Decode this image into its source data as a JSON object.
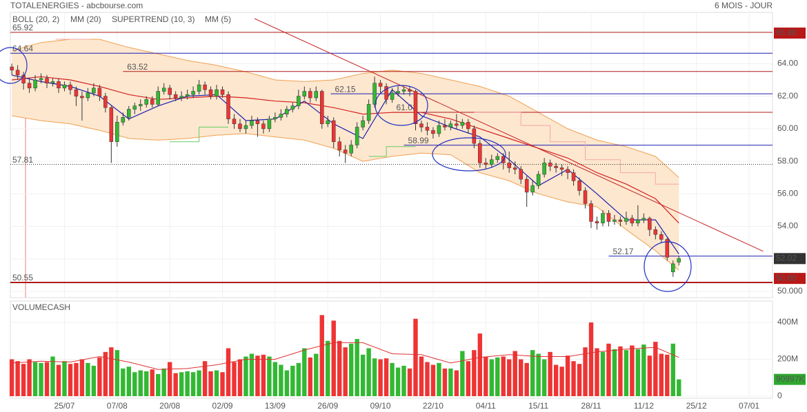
{
  "header": {
    "title": "TOTALENERGIES - abcbourse.com",
    "period": "6 MOIS - JOUR"
  },
  "chart_data": [
    {
      "type": "candlestick",
      "xlim": [
        -0.25,
        130
      ],
      "xticks": [
        {
          "value": 9,
          "label": "25/07"
        },
        {
          "value": 18,
          "label": "07/08"
        },
        {
          "value": 27,
          "label": "20/08"
        },
        {
          "value": 36,
          "label": "02/09"
        },
        {
          "value": 45,
          "label": "13/09"
        },
        {
          "value": 54,
          "label": "26/09"
        },
        {
          "value": 63,
          "label": "09/10"
        },
        {
          "value": 72,
          "label": "22/10"
        },
        {
          "value": 81,
          "label": "04/11"
        },
        {
          "value": 90,
          "label": "15/11"
        },
        {
          "value": 99,
          "label": "28/11"
        },
        {
          "value": 108,
          "label": "11/12"
        },
        {
          "value": 117,
          "label": "25/12"
        },
        {
          "value": 126,
          "label": "07/01"
        }
      ],
      "ylim": [
        49.62,
        67.15
      ],
      "yticks": [
        {
          "value": 50,
          "label": "50.000"
        },
        {
          "value": 52,
          "label": "52.00"
        },
        {
          "value": 54,
          "label": "54.00"
        },
        {
          "value": 56,
          "label": "56.00"
        },
        {
          "value": 58,
          "label": "58.00"
        },
        {
          "value": 60,
          "label": "60.00"
        },
        {
          "value": 62,
          "label": "62.00"
        },
        {
          "value": 64,
          "label": "64.00"
        },
        {
          "value": 66,
          "label": "66.00"
        }
      ],
      "grid": true,
      "up_color": "#33b833",
      "down_color": "#ee3434",
      "candles": [
        [
          63.8,
          64.0,
          63.3,
          63.6
        ],
        [
          63.6,
          63.9,
          63.0,
          63.3
        ],
        [
          63.3,
          63.5,
          62.4,
          62.8
        ],
        [
          62.8,
          63.1,
          62.2,
          62.5
        ],
        [
          62.5,
          63.3,
          62.3,
          63.0
        ],
        [
          63.0,
          63.4,
          62.8,
          63.1
        ],
        [
          63.1,
          63.3,
          62.5,
          62.8
        ],
        [
          62.8,
          63.1,
          62.6,
          62.9
        ],
        [
          62.9,
          63.1,
          62.2,
          62.5
        ],
        [
          62.5,
          62.9,
          62.3,
          62.7
        ],
        [
          62.7,
          62.9,
          62.1,
          62.4
        ],
        [
          62.4,
          62.6,
          61.4,
          62.0
        ],
        [
          62.0,
          62.3,
          60.5,
          61.9
        ],
        [
          61.9,
          62.5,
          61.7,
          62.2
        ],
        [
          62.2,
          62.8,
          62.0,
          62.5
        ],
        [
          62.5,
          62.7,
          61.7,
          62.0
        ],
        [
          62.0,
          62.2,
          61.0,
          61.3
        ],
        [
          61.3,
          61.4,
          57.9,
          59.2
        ],
        [
          59.2,
          60.8,
          58.9,
          60.4
        ],
        [
          60.4,
          61.0,
          60.2,
          60.7
        ],
        [
          60.7,
          61.4,
          60.5,
          61.2
        ],
        [
          61.2,
          61.6,
          60.9,
          61.4
        ],
        [
          61.4,
          61.8,
          61.1,
          61.5
        ],
        [
          61.5,
          62.0,
          61.3,
          61.8
        ],
        [
          61.8,
          62.0,
          61.3,
          61.5
        ],
        [
          61.5,
          62.6,
          61.4,
          62.3
        ],
        [
          62.3,
          62.8,
          62.1,
          62.5
        ],
        [
          62.5,
          62.7,
          61.8,
          62.1
        ],
        [
          62.1,
          62.3,
          61.7,
          61.9
        ],
        [
          61.9,
          62.3,
          61.7,
          62.0
        ],
        [
          62.0,
          62.4,
          61.8,
          62.1
        ],
        [
          62.1,
          62.6,
          61.9,
          62.3
        ],
        [
          62.3,
          63.0,
          62.1,
          62.7
        ],
        [
          62.7,
          62.9,
          62.1,
          62.4
        ],
        [
          62.4,
          62.6,
          61.8,
          62.0
        ],
        [
          62.0,
          62.7,
          61.8,
          62.4
        ],
        [
          62.4,
          62.6,
          61.9,
          62.1
        ],
        [
          62.1,
          62.3,
          60.3,
          60.6
        ],
        [
          60.6,
          60.9,
          60.0,
          60.3
        ],
        [
          60.3,
          60.6,
          59.8,
          60.0
        ],
        [
          60.0,
          60.5,
          59.7,
          60.2
        ],
        [
          60.2,
          60.8,
          60.0,
          60.5
        ],
        [
          60.5,
          60.7,
          59.5,
          60.3
        ],
        [
          60.3,
          60.5,
          59.7,
          60.0
        ],
        [
          60.0,
          60.8,
          59.8,
          60.6
        ],
        [
          60.6,
          61.0,
          60.4,
          60.7
        ],
        [
          60.7,
          61.2,
          60.5,
          60.9
        ],
        [
          60.9,
          61.4,
          60.7,
          61.2
        ],
        [
          61.2,
          61.6,
          61.0,
          61.4
        ],
        [
          61.4,
          62.4,
          61.2,
          62.0
        ],
        [
          62.0,
          62.6,
          61.8,
          62.3
        ],
        [
          62.3,
          62.5,
          61.6,
          61.9
        ],
        [
          61.9,
          62.6,
          61.7,
          62.3
        ],
        [
          62.3,
          62.4,
          60.0,
          60.3
        ],
        [
          60.3,
          60.8,
          60.1,
          60.5
        ],
        [
          60.5,
          60.7,
          58.8,
          59.2
        ],
        [
          59.2,
          59.5,
          58.3,
          58.7
        ],
        [
          58.7,
          59.0,
          57.9,
          58.5
        ],
        [
          58.5,
          59.3,
          58.3,
          59.0
        ],
        [
          59.0,
          60.4,
          58.8,
          60.1
        ],
        [
          60.1,
          60.8,
          59.9,
          60.5
        ],
        [
          60.5,
          61.8,
          60.3,
          61.5
        ],
        [
          61.5,
          63.2,
          61.3,
          62.8
        ],
        [
          62.8,
          63.0,
          62.2,
          62.6
        ],
        [
          62.6,
          62.8,
          61.5,
          61.8
        ],
        [
          61.8,
          62.5,
          61.6,
          62.2
        ],
        [
          62.2,
          62.6,
          62.0,
          62.3
        ],
        [
          62.3,
          62.6,
          62.1,
          62.4
        ],
        [
          62.4,
          62.6,
          62.0,
          62.3
        ],
        [
          62.3,
          62.4,
          59.9,
          60.3
        ],
        [
          60.3,
          60.5,
          59.8,
          60.1
        ],
        [
          60.1,
          60.4,
          59.6,
          59.9
        ],
        [
          59.9,
          60.1,
          59.4,
          59.7
        ],
        [
          59.7,
          60.5,
          59.5,
          60.2
        ],
        [
          60.2,
          60.6,
          59.9,
          60.1
        ],
        [
          60.1,
          60.5,
          59.9,
          60.3
        ],
        [
          60.3,
          60.9,
          60.0,
          60.2
        ],
        [
          60.2,
          60.6,
          60.0,
          60.4
        ],
        [
          60.4,
          60.6,
          59.7,
          60.0
        ],
        [
          60.0,
          60.2,
          58.8,
          59.1
        ],
        [
          59.1,
          59.3,
          57.6,
          57.9
        ],
        [
          57.9,
          58.2,
          57.5,
          57.8
        ],
        [
          57.8,
          58.4,
          57.6,
          58.1
        ],
        [
          58.1,
          58.5,
          57.9,
          58.3
        ],
        [
          58.3,
          58.5,
          57.5,
          57.9
        ],
        [
          57.9,
          58.6,
          57.3,
          57.6
        ],
        [
          57.6,
          58.0,
          57.2,
          57.5
        ],
        [
          57.5,
          57.7,
          56.6,
          56.9
        ],
        [
          56.9,
          57.1,
          55.2,
          56.1
        ],
        [
          56.1,
          56.8,
          55.9,
          56.5
        ],
        [
          56.5,
          57.4,
          56.3,
          57.2
        ],
        [
          57.2,
          58.2,
          57.0,
          57.9
        ],
        [
          57.9,
          58.1,
          57.4,
          57.7
        ],
        [
          57.7,
          57.9,
          57.3,
          57.6
        ],
        [
          57.6,
          57.8,
          57.1,
          57.5
        ],
        [
          57.5,
          57.7,
          56.9,
          57.3
        ],
        [
          57.3,
          57.5,
          56.5,
          56.8
        ],
        [
          56.8,
          57.0,
          55.9,
          56.2
        ],
        [
          56.2,
          56.4,
          55.1,
          55.4
        ],
        [
          55.4,
          55.6,
          53.9,
          54.3
        ],
        [
          54.3,
          54.6,
          53.8,
          54.2
        ],
        [
          54.2,
          55.0,
          54.0,
          54.8
        ],
        [
          54.8,
          55.0,
          54.0,
          54.3
        ],
        [
          54.3,
          54.7,
          54.1,
          54.4
        ],
        [
          54.4,
          54.6,
          54.0,
          54.3
        ],
        [
          54.3,
          54.9,
          54.1,
          54.5
        ],
        [
          54.5,
          54.7,
          54.0,
          54.2
        ],
        [
          54.2,
          55.3,
          54.0,
          54.4
        ],
        [
          54.4,
          54.8,
          54.2,
          54.5
        ],
        [
          54.5,
          54.6,
          53.4,
          53.8
        ],
        [
          53.8,
          54.0,
          53.2,
          53.5
        ],
        [
          53.5,
          53.7,
          53.0,
          53.2
        ],
        [
          53.2,
          53.3,
          51.9,
          52.1
        ],
        [
          51.2,
          51.9,
          50.9,
          51.7
        ],
        [
          51.8,
          52.2,
          51.6,
          52.02
        ]
      ],
      "indicator_x": [
        0,
        5,
        10,
        15,
        20,
        25,
        30,
        35,
        40,
        45,
        50,
        55,
        60,
        65,
        70,
        75,
        80,
        85,
        90,
        95,
        100,
        105,
        110,
        114
      ],
      "series": [
        {
          "name": "BOLL (20, 2)",
          "color": "#f0a050",
          "fill": "#fde7cf",
          "upper": [
            64.8,
            65.3,
            65.5,
            65.5,
            65.0,
            64.6,
            64.2,
            63.9,
            63.5,
            63.0,
            62.9,
            63.0,
            63.4,
            63.6,
            63.4,
            63.0,
            62.6,
            62.0,
            61.0,
            60.0,
            59.3,
            58.9,
            58.3,
            57.0
          ],
          "lower": [
            60.8,
            60.5,
            60.3,
            59.9,
            59.4,
            59.3,
            59.4,
            59.6,
            59.7,
            59.5,
            59.3,
            58.8,
            58.0,
            58.3,
            58.5,
            58.4,
            57.3,
            56.8,
            56.0,
            55.5,
            55.2,
            53.8,
            52.5,
            51.3
          ]
        },
        {
          "name": "MM (20)",
          "color": "#d42020",
          "values": [
            63.0,
            63.2,
            63.0,
            62.6,
            62.1,
            61.8,
            61.9,
            62.0,
            61.9,
            61.7,
            61.6,
            61.3,
            60.9,
            61.0,
            61.0,
            60.6,
            60.0,
            59.4,
            58.8,
            58.2,
            57.3,
            56.6,
            55.7,
            54.2
          ]
        },
        {
          "name": "SUPERTREND (10, 3)",
          "color": "#f4a7a7",
          "up_color": "#66cc66",
          "up": {
            "x": [
              27,
              32,
              32,
              37,
              null,
              61,
              64,
              64,
              69
            ],
            "values": [
              59.2,
              59.2,
              60.1,
              60.1,
              null,
              58.3,
              58.3,
              58.9,
              58.9
            ]
          },
          "down": {
            "x": [
              7.5,
              13.3,
              null,
              79,
              87,
              87,
              92,
              92,
              98,
              98,
              104,
              104,
              110,
              110,
              114
            ],
            "values": [
              65.5,
              65.5,
              null,
              61.0,
              61.0,
              60.2,
              60.2,
              59.2,
              59.2,
              58.1,
              58.1,
              57.3,
              57.3,
              56.6,
              56.6
            ]
          }
        },
        {
          "name": "MM (5)",
          "color": "#1c1cb0",
          "values": [
            63.3,
            62.9,
            62.6,
            62.0,
            60.6,
            61.4,
            62.0,
            62.1,
            60.5,
            60.6,
            61.7,
            60.3,
            59.4,
            62.4,
            60.8,
            60.1,
            59.5,
            58.1,
            56.5,
            57.5,
            56.0,
            54.4,
            54.4,
            52.3
          ]
        }
      ],
      "levels": [
        {
          "value": 65.92,
          "label": "65.92",
          "color": "#b01818"
        },
        {
          "value": 64.64,
          "label": "64.64",
          "color": "#1c1cb0"
        },
        {
          "value": 63.52,
          "label": "63.52",
          "color": "#b01818",
          "x": 19
        },
        {
          "value": 62.15,
          "label": "62.15",
          "color": "#1c1cb0",
          "x": 54.5
        },
        {
          "value": 61.01,
          "label": "61.01",
          "color": "#b01818",
          "x": 65
        },
        {
          "value": 58.99,
          "label": "58.99",
          "color": "#1c1cb0",
          "x": 67
        },
        {
          "value": 57.81,
          "label": "57.81",
          "color": "#222222",
          "style": "dotted"
        },
        {
          "value": 52.17,
          "label": "52.17",
          "color": "#1c1cb0",
          "x": 102
        },
        {
          "value": 50.55,
          "label": "50.55",
          "color": "#b01818",
          "style": "thick"
        }
      ],
      "trendline": {
        "color": "#c42020",
        "x": [
          41.5,
          128.4
        ],
        "values": [
          66.77,
          52.47
        ]
      },
      "price_boxes": [
        {
          "value": 65.88,
          "label": "65.88",
          "color": "#b81818"
        },
        {
          "value": 52.02,
          "label": "52.02",
          "color": "#333333"
        },
        {
          "value": 50.8,
          "label": "50.80",
          "color": "#b81818"
        }
      ]
    },
    {
      "type": "bar",
      "title": "VOLUMECASH",
      "title_color": "#2ea82e",
      "ylim": [
        0,
        516
      ],
      "yticks": [
        0,
        {
          "value": 200,
          "label": "200M"
        },
        {
          "value": 400,
          "label": "400M"
        }
      ],
      "values": [
        200,
        190,
        175,
        200,
        185,
        180,
        185,
        215,
        170,
        190,
        175,
        180,
        200,
        180,
        165,
        210,
        240,
        265,
        250,
        150,
        160,
        130,
        140,
        135,
        145,
        120,
        150,
        185,
        125,
        130,
        135,
        130,
        140,
        190,
        135,
        140,
        130,
        260,
        185,
        200,
        215,
        230,
        220,
        225,
        215,
        185,
        170,
        140,
        165,
        180,
        260,
        210,
        230,
        440,
        300,
        410,
        300,
        265,
        285,
        310,
        225,
        260,
        205,
        200,
        205,
        180,
        155,
        165,
        150,
        420,
        215,
        185,
        170,
        180,
        150,
        150,
        140,
        245,
        190,
        250,
        340,
        215,
        200,
        210,
        215,
        200,
        245,
        200,
        180,
        250,
        230,
        200,
        240,
        170,
        160,
        220,
        190,
        175,
        265,
        400,
        260,
        240,
        285,
        255,
        270,
        250,
        275,
        255,
        280,
        220,
        295,
        230,
        225,
        285,
        90.997
      ],
      "ma": {
        "color": "#e03030",
        "values": [
          180,
          190,
          185,
          215,
          185,
          145,
          150,
          170,
          200,
          200,
          250,
          290,
          290,
          230,
          225,
          180,
          210,
          225,
          215,
          215,
          240,
          255,
          265,
          210
        ]
      },
      "last_box": {
        "value": 90.997,
        "label": "90997K",
        "color": "#2ea82e"
      }
    }
  ]
}
